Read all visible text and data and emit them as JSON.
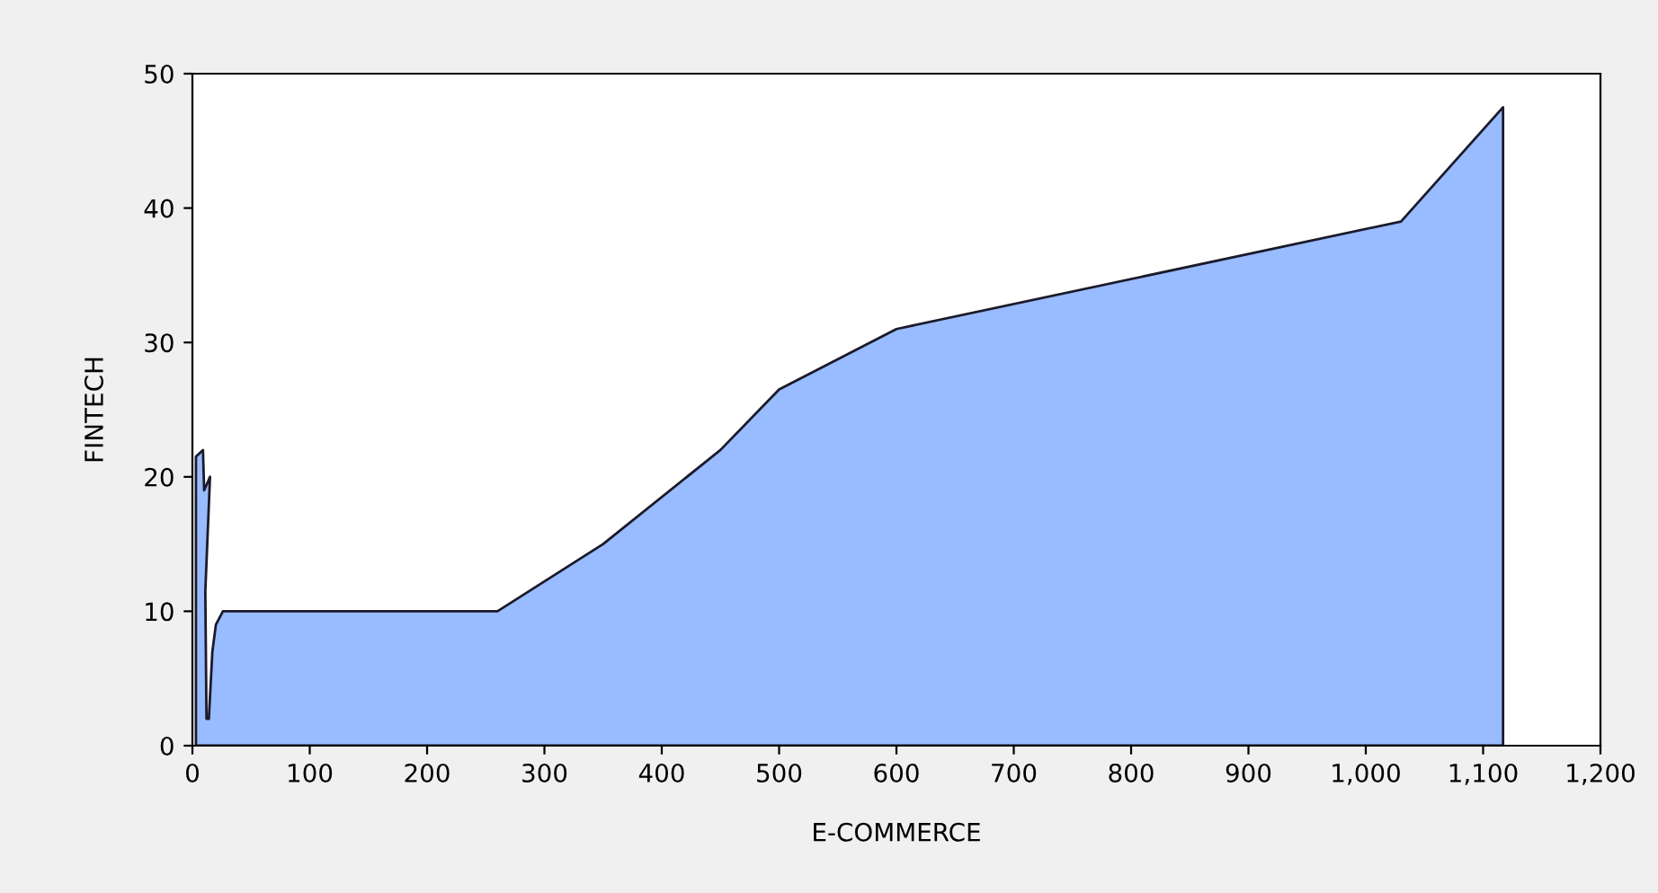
{
  "chart_data": {
    "type": "area",
    "xlabel": "E-COMMERCE",
    "ylabel": "FINTECH",
    "x": [
      3,
      9,
      10,
      15,
      11,
      12,
      14,
      17,
      20,
      26,
      260,
      350,
      450,
      500,
      600,
      1030,
      1117
    ],
    "series": [
      {
        "color": "#99bbff",
        "values": [
          21.5,
          22,
          19,
          20,
          11.5,
          2,
          2,
          7,
          9,
          10,
          10,
          15,
          22,
          26.5,
          31,
          39,
          47.5
        ]
      }
    ],
    "xlim": [
      0,
      1200
    ],
    "ylim": [
      0,
      50
    ],
    "xticks": [
      0,
      100,
      200,
      300,
      400,
      500,
      600,
      700,
      800,
      900,
      {
        "value": 1000,
        "label": "1,000"
      },
      {
        "value": 1100,
        "label": "1,100"
      },
      {
        "value": 1200,
        "label": "1,200"
      }
    ],
    "yticks": [
      0,
      10,
      20,
      30,
      40,
      50
    ],
    "grid": false,
    "legend": false
  }
}
